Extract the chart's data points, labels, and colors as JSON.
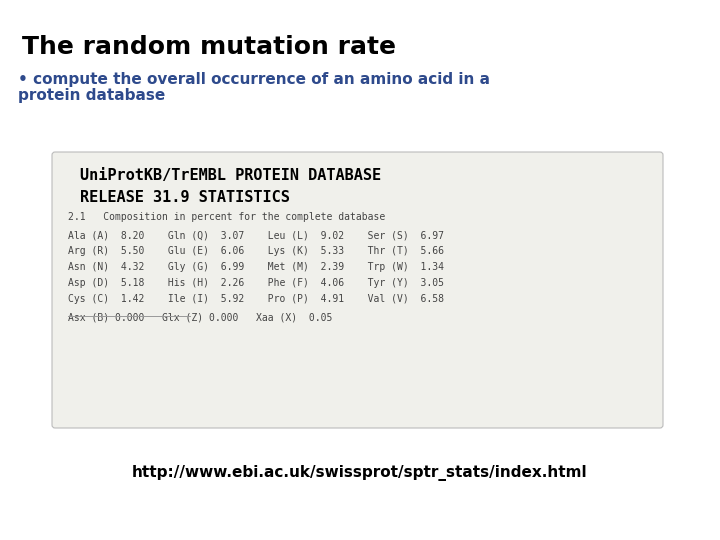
{
  "title": "The random mutation rate",
  "bullet_line1": "• compute the overall occurrence of an amino acid in a",
  "bullet_line2": "protein database",
  "db_title_line1": "UniProtKB/TrEMBL PROTEIN DATABASE",
  "db_title_line2": "RELEASE 31.9 STATISTICS",
  "section_label": "2.1   Composition in percent for the complete database",
  "table_lines": [
    "Ala (A)  8.20    Gln (Q)  3.07    Leu (L)  9.02    Ser (S)  6.97",
    "Arg (R)  5.50    Glu (E)  6.06    Lys (K)  5.33    Thr (T)  5.66",
    "Asn (N)  4.32    Gly (G)  6.99    Met (M)  2.39    Trp (W)  1.34",
    "Asp (D)  5.18    His (H)  2.26    Phe (F)  4.06    Tyr (Y)  3.05",
    "Cys (C)  1.42    Ile (I)  5.92    Pro (P)  4.91    Val (V)  6.58"
  ],
  "extra_line": "Asx (B) 0.000   Glx (Z) 0.000   Xaa (X)  0.05",
  "url": "http://www.ebi.ac.uk/swissprot/sptr_stats/index.html",
  "bg_color": "#ffffff",
  "title_color": "#000000",
  "bullet_color": "#2e4a8c",
  "db_title_color": "#000000",
  "table_color": "#444444",
  "url_color": "#000000",
  "box_bg": "#f0f0eb",
  "box_border": "#bbbbbb",
  "title_fontsize": 18,
  "bullet_fontsize": 11,
  "db_title_fontsize": 11,
  "section_fontsize": 7,
  "table_fontsize": 7,
  "url_fontsize": 11
}
